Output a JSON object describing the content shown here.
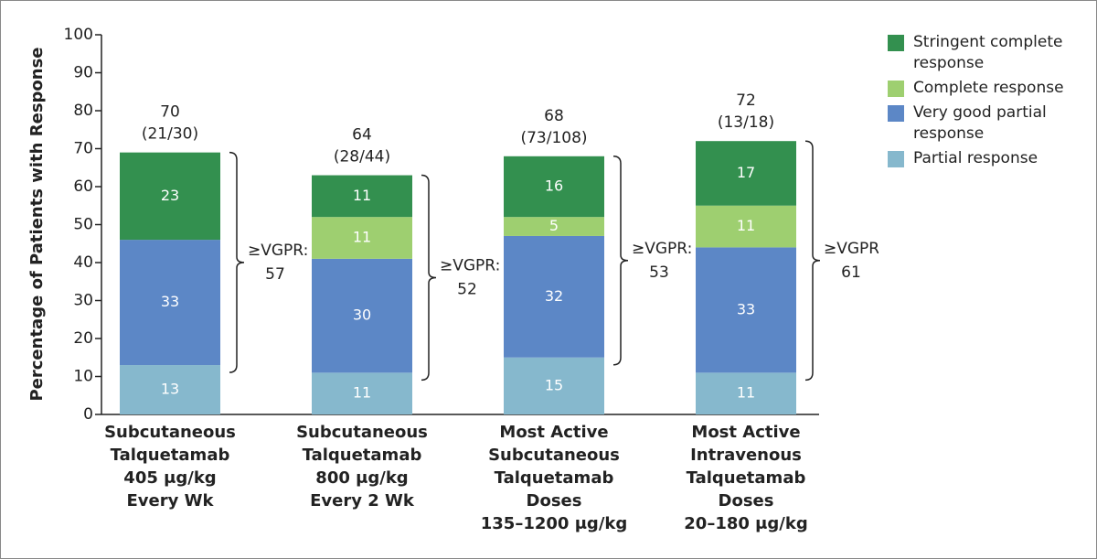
{
  "chart_data": {
    "type": "stacked_bar",
    "y_label": "Percentage of Patients with Response",
    "categories": [
      [
        "Subcutaneous",
        "Talquetamab",
        "405 μg/kg",
        "Every Wk"
      ],
      [
        "Subcutaneous",
        "Talquetamab",
        "800 μg/kg",
        "Every 2 Wk"
      ],
      [
        "Most Active",
        "Subcutaneous",
        "Talquetamab",
        "Doses",
        "135–1200 μg/kg"
      ],
      [
        "Most Active",
        "Intravenous",
        "Talquetamab",
        "Doses",
        "20–180 μg/kg"
      ]
    ],
    "series": [
      {
        "name": "Partial response",
        "color": "#86b8cd",
        "values": [
          13,
          11,
          15,
          11
        ]
      },
      {
        "name": "Very good partial response",
        "color": "#5c87c6",
        "values": [
          33,
          30,
          32,
          33
        ]
      },
      {
        "name": "Complete response",
        "color": "#9ecf70",
        "values": [
          null,
          11,
          5,
          11
        ]
      },
      {
        "name": "Stringent complete response",
        "color": "#33904f",
        "values": [
          23,
          11,
          16,
          17
        ]
      }
    ],
    "totals": [
      70,
      64,
      68,
      72
    ],
    "counts": [
      "(21/30)",
      "(28/44)",
      "(73/108)",
      "(13/18)"
    ],
    "vgpr_label": "≥VGPR:",
    "vgpr": [
      57,
      52,
      53,
      61
    ],
    "ylim": [
      0,
      100
    ],
    "yticks": [
      0,
      10,
      20,
      30,
      40,
      50,
      60,
      70,
      80,
      90,
      100
    ],
    "legend": "top-right"
  }
}
